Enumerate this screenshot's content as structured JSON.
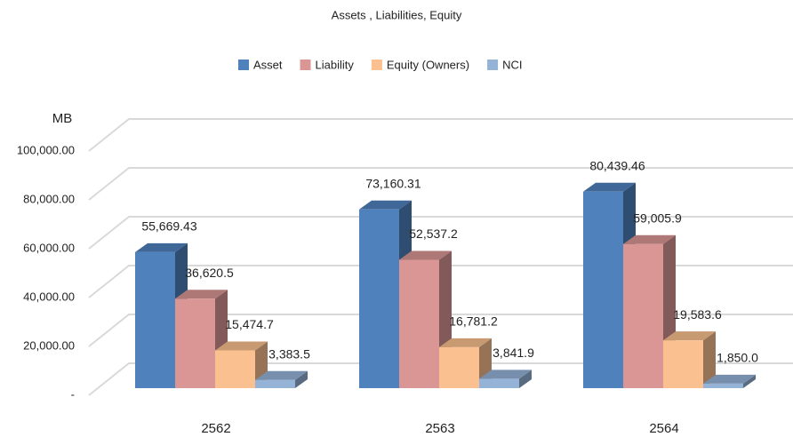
{
  "chart_data": {
    "type": "bar3d",
    "title": "Assets , Liabilities, Equity",
    "y_label": "MB",
    "categories": [
      "2562",
      "2563",
      "2564"
    ],
    "series": [
      {
        "name": "Asset",
        "color": "#4f81bd",
        "values": [
          55669.43,
          73160.31,
          80439.46
        ],
        "value_labels": [
          "55,669.43",
          "73,160.31",
          "80,439.46"
        ]
      },
      {
        "name": "Liability",
        "color": "#d99694",
        "values": [
          36620.5,
          52537.2,
          59005.9
        ],
        "value_labels": [
          "36,620.5",
          "52,537.2",
          "59,005.9"
        ]
      },
      {
        "name": "Equity (Owners)",
        "color": "#fac08f",
        "values": [
          15474.7,
          16781.2,
          19583.6
        ],
        "value_labels": [
          "15,474.7",
          "16,781.2",
          "19,583.6"
        ]
      },
      {
        "name": "NCI",
        "color": "#95b3d7",
        "values": [
          3383.5,
          3841.9,
          1850.0
        ],
        "value_labels": [
          "3,383.5",
          "3,841.9",
          "1,850.0"
        ]
      }
    ],
    "ylim": [
      0,
      100000
    ],
    "yticks": [
      {
        "value": 0,
        "label": "-"
      },
      {
        "value": 20000,
        "label": "20,000.00"
      },
      {
        "value": 40000,
        "label": "40,000.00"
      },
      {
        "value": 60000,
        "label": "60,000.00"
      },
      {
        "value": 80000,
        "label": "80,000.00"
      },
      {
        "value": 100000,
        "label": "100,000.00"
      }
    ],
    "grid": true,
    "legend": "top"
  }
}
